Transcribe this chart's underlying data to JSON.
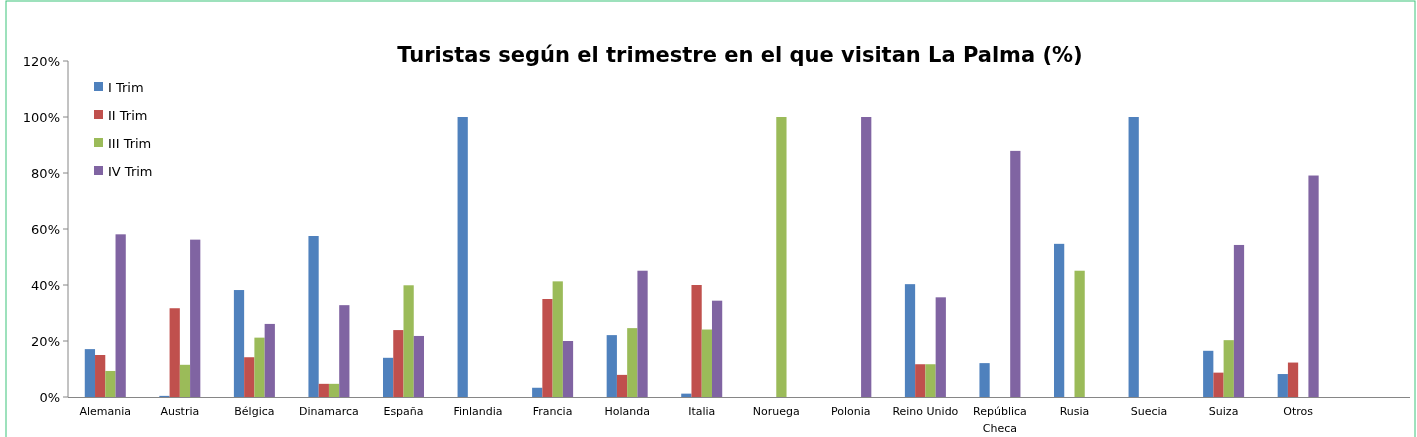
{
  "chart_data": {
    "type": "bar",
    "title": "Turistas según el trimestre en el que visitan La Palma  (%)",
    "categories": [
      "Alemania",
      "Austria",
      "Bélgica",
      "Dinamarca",
      "España",
      "Finlandia",
      "Francia",
      "Holanda",
      "Italia",
      "Noruega",
      "Polonia",
      "Reino Unido",
      "República Checa",
      "Rusia",
      "Suecia",
      "Suiza",
      "Otros",
      null
    ],
    "series": [
      {
        "name": "I Trim",
        "color": "#4f81bd",
        "values": [
          17.1,
          0.4,
          38.2,
          57.5,
          14.0,
          100,
          3.3,
          22.1,
          1.2,
          0,
          0,
          40.3,
          12.1,
          54.7,
          100,
          16.5,
          8.2,
          null
        ]
      },
      {
        "name": "II Trim",
        "color": "#c0504d",
        "values": [
          15.0,
          31.7,
          14.2,
          4.7,
          23.9,
          0,
          35.0,
          7.9,
          40.0,
          0,
          0,
          11.7,
          0,
          0,
          0,
          8.7,
          12.3,
          null
        ]
      },
      {
        "name": "III Trim",
        "color": "#9bbb59",
        "values": [
          9.3,
          11.5,
          21.2,
          4.7,
          39.9,
          0,
          41.3,
          24.6,
          24.1,
          100,
          0,
          11.7,
          0,
          45.1,
          0,
          20.3,
          0,
          null
        ]
      },
      {
        "name": "IV Trim",
        "color": "#8064a2",
        "values": [
          58.1,
          56.2,
          26.1,
          32.8,
          21.8,
          0,
          20.0,
          45.1,
          34.4,
          0,
          100,
          35.6,
          87.9,
          0,
          0,
          54.3,
          79.1,
          null
        ]
      }
    ],
    "ylim": [
      0,
      120
    ],
    "yticks": [
      {
        "value": 0,
        "label": "0%"
      },
      {
        "value": 20,
        "label": "20%"
      },
      {
        "value": 40,
        "label": "40%"
      },
      {
        "value": 60,
        "label": "60%"
      },
      {
        "value": 80,
        "label": "80%"
      },
      {
        "value": 100,
        "label": "100%"
      },
      {
        "value": 120,
        "label": "120%"
      }
    ],
    "grid": false,
    "legend": "top left"
  }
}
